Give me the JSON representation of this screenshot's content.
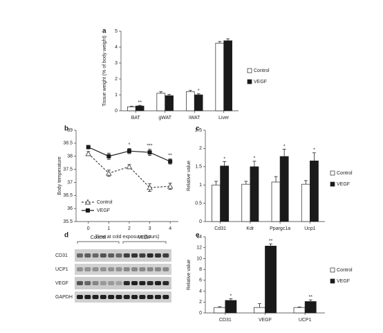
{
  "chart_data": [
    {
      "type": "bar",
      "label": "a",
      "ylabel": "Tissue weight (% of body weight)",
      "categories": [
        "BAT",
        "gWAT",
        "iWAT",
        "Liver"
      ],
      "series": [
        {
          "name": "Control",
          "color": "#ffffff",
          "values": [
            0.25,
            1.1,
            1.2,
            4.25
          ],
          "errors": [
            0.04,
            0.1,
            0.08,
            0.1
          ]
        },
        {
          "name": "VEGF",
          "color": "#1a1a1a",
          "values": [
            0.3,
            0.95,
            1.0,
            4.4
          ],
          "errors": [
            0.04,
            0.08,
            0.07,
            0.12
          ],
          "significance": [
            "**",
            null,
            "*",
            null
          ]
        }
      ],
      "ylim": [
        0,
        5
      ],
      "yticks": [
        0,
        1,
        2,
        3,
        4,
        5
      ]
    },
    {
      "type": "line",
      "label": "b",
      "ylabel": "Body temperature",
      "xlabel": "Time at cold exposure (hours)",
      "x": [
        0,
        1,
        2,
        3,
        4
      ],
      "series": [
        {
          "name": "Control",
          "color": "#444444",
          "marker": "triangle",
          "linestyle": "dashed",
          "values": [
            38.1,
            37.35,
            37.6,
            36.8,
            36.85
          ],
          "errors": [
            0.08,
            0.12,
            0.08,
            0.15,
            0.12
          ]
        },
        {
          "name": "VEGF",
          "color": "#1a1a1a",
          "marker": "square",
          "linestyle": "solid",
          "values": [
            38.35,
            38.0,
            38.2,
            38.15,
            37.8
          ],
          "errors": [
            0.07,
            0.12,
            0.1,
            0.12,
            0.1
          ],
          "significance": [
            null,
            null,
            "*",
            "***",
            "**"
          ]
        }
      ],
      "xlim": [
        -0.6,
        4.4
      ],
      "xticks": [
        0,
        1,
        2,
        3,
        4
      ],
      "ylim": [
        35.5,
        39
      ],
      "yticks": [
        35.5,
        36,
        36.5,
        37,
        37.5,
        38,
        38.5,
        39
      ]
    },
    {
      "type": "bar",
      "label": "c",
      "ylabel": "Relative value",
      "categories": [
        "Cd31",
        "Kdr",
        "Ppargc1a",
        "Ucp1"
      ],
      "series": [
        {
          "name": "Control",
          "color": "#ffffff",
          "values": [
            1.0,
            1.02,
            1.08,
            1.02
          ],
          "errors": [
            0.1,
            0.08,
            0.15,
            0.1
          ]
        },
        {
          "name": "VEGF",
          "color": "#1a1a1a",
          "values": [
            1.52,
            1.5,
            1.78,
            1.66
          ],
          "errors": [
            0.12,
            0.15,
            0.2,
            0.22
          ],
          "significance": [
            "*",
            "*",
            "*",
            "*"
          ]
        }
      ],
      "ylim": [
        0,
        2.5
      ],
      "yticks": [
        0,
        0.5,
        1,
        1.5,
        2,
        2.5
      ]
    },
    {
      "type": "bar",
      "label": "e",
      "ylabel": "Relative value",
      "categories": [
        "CD31",
        "VEGF",
        "UCP1"
      ],
      "series": [
        {
          "name": "Control",
          "color": "#ffffff",
          "values": [
            1.0,
            1.0,
            1.0
          ],
          "errors": [
            0.15,
            0.7,
            0.1
          ]
        },
        {
          "name": "VEGF",
          "color": "#1a1a1a",
          "values": [
            2.3,
            12.3,
            2.1
          ],
          "errors": [
            0.3,
            0.4,
            0.3
          ],
          "significance": [
            "*",
            "**",
            "**"
          ]
        }
      ],
      "ylim": [
        0,
        14
      ],
      "yticks": [
        0,
        2,
        4,
        6,
        8,
        10,
        12,
        14
      ]
    }
  ],
  "blot": {
    "label": "d",
    "groups": [
      "Control",
      "VEGF"
    ],
    "rows": [
      "CD31",
      "UCP1",
      "VEGF",
      "GAPDH"
    ]
  }
}
